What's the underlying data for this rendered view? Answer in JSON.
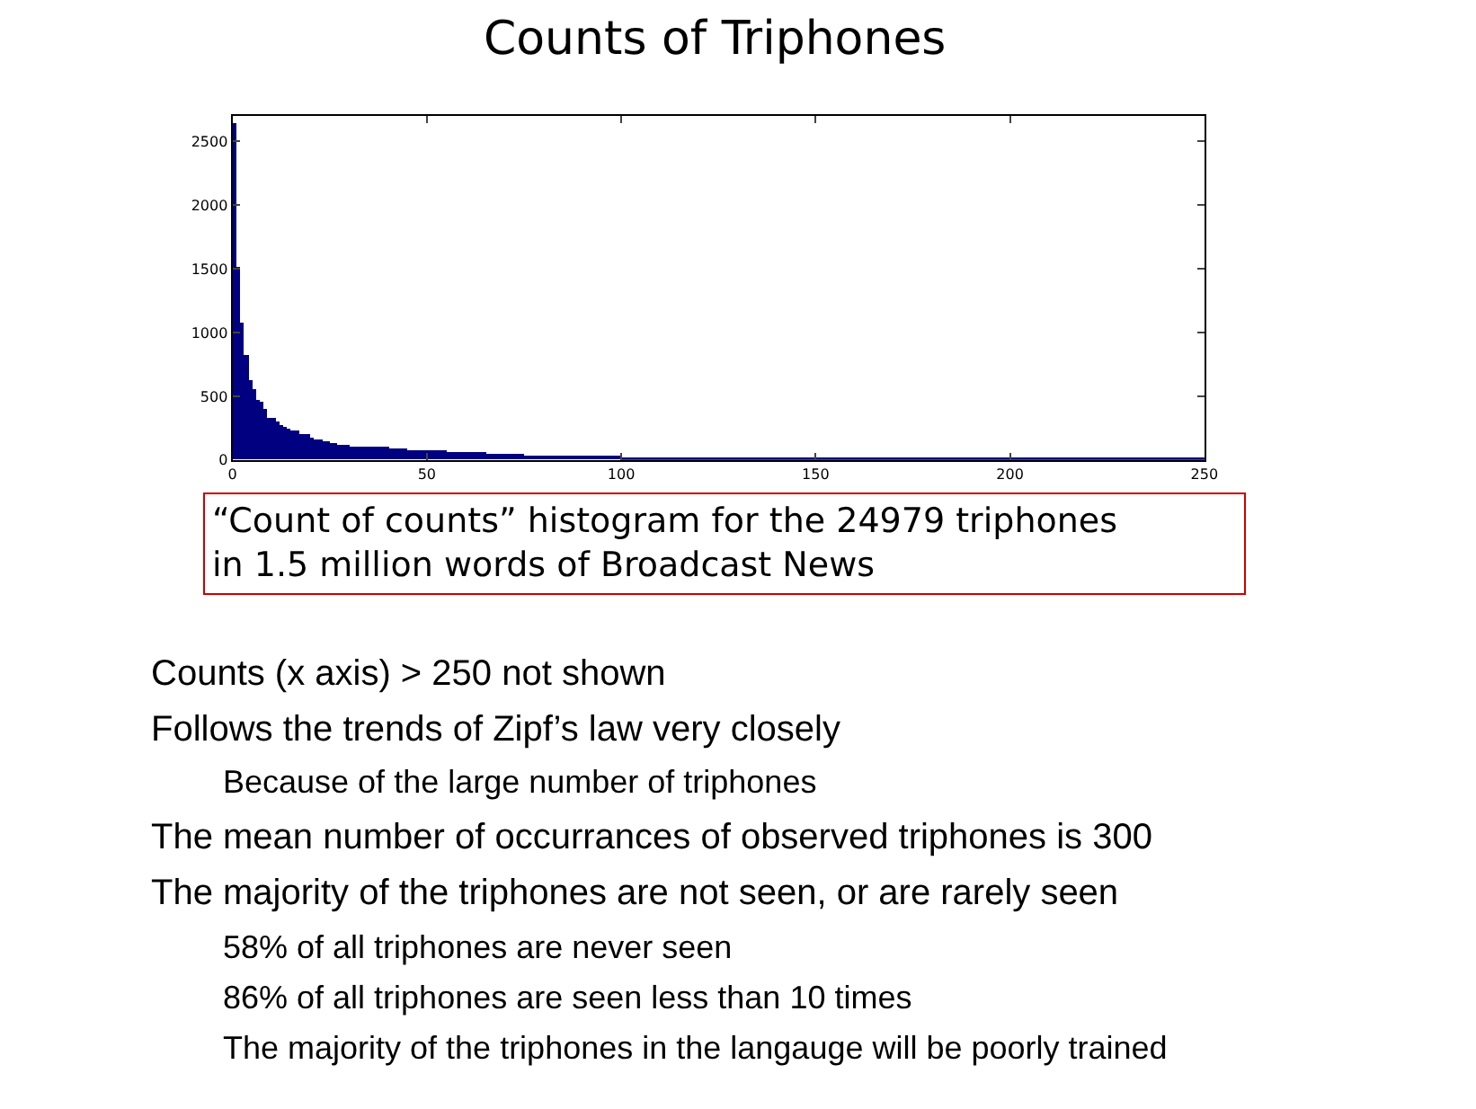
{
  "chart_data": {
    "type": "histogram",
    "title": "Counts of Triphones",
    "bins": [
      0,
      1,
      2,
      3,
      4,
      5,
      6,
      7,
      8,
      9,
      10,
      11,
      12,
      13,
      14,
      15,
      16,
      17,
      18,
      19,
      20,
      21,
      22,
      23,
      24,
      25,
      26,
      27,
      28,
      29,
      30,
      35,
      40,
      45,
      50,
      55,
      60,
      65,
      70,
      75,
      80,
      85,
      90,
      95,
      100,
      110,
      120,
      130,
      140,
      150,
      160,
      170,
      180,
      190,
      200,
      210,
      220,
      230,
      240,
      250
    ],
    "values": [
      2650,
      1510,
      1080,
      820,
      630,
      560,
      470,
      460,
      400,
      330,
      330,
      300,
      270,
      260,
      240,
      230,
      230,
      200,
      200,
      200,
      170,
      160,
      160,
      150,
      150,
      140,
      130,
      120,
      120,
      120,
      100,
      100,
      90,
      80,
      70,
      60,
      60,
      50,
      50,
      40,
      40,
      30,
      30,
      30,
      20,
      20,
      20,
      20,
      20,
      10,
      10,
      10,
      10,
      10,
      10,
      10,
      10,
      10,
      10
    ],
    "color": "#000080",
    "xlim": [
      0,
      250
    ],
    "xticks": [
      0,
      50,
      100,
      150,
      200,
      250
    ],
    "ylim": [
      0,
      2700
    ],
    "yticks": [
      0,
      500,
      1000,
      1500,
      2000,
      2500
    ],
    "annotations": [
      "“Count of counts” histogram for the 24979 triphones\nin 1.5 million words of Broadcast News",
      "Counts (x axis) > 250 not shown",
      "Follows the trends of Zipf’s law very closely",
      "Because of the large number of triphones",
      "The mean number of occurrances of observed triphones is 300",
      "The majority of the triphones are not seen, or are rarely seen",
      "58% of all triphones are never seen",
      "86% of all triphones are seen less than 10 times",
      "The majority of the triphones in the langauge will be poorly trained"
    ]
  }
}
